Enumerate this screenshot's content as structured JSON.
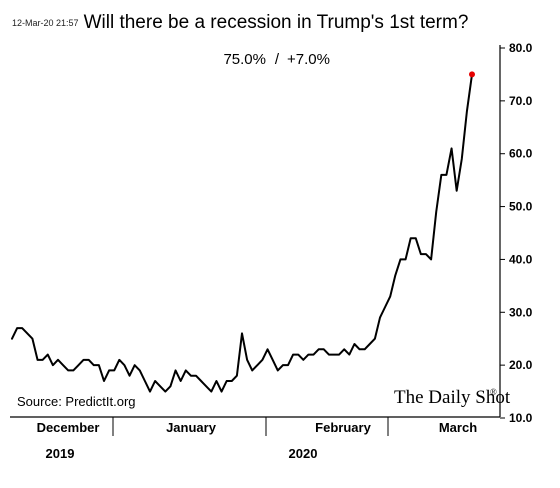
{
  "timestamp": "12-Mar-20 21:57",
  "subtitle_value": "75.0%",
  "subtitle_sep": "/",
  "subtitle_change": "+7.0%",
  "source": "Source: PredictIt.org",
  "brand": "The Daily Shot",
  "brand_mark": "®",
  "chart_data": {
    "type": "line",
    "title": "Will there be a recession in Trump's 1st term?",
    "xlabel": "",
    "ylabel": "",
    "ylim": [
      10,
      80
    ],
    "yticks": [
      "10.0",
      "20.0",
      "30.0",
      "40.0",
      "50.0",
      "60.0",
      "70.0",
      "80.0"
    ],
    "month_labels": [
      "December",
      "January",
      "February",
      "March"
    ],
    "year_labels": [
      "2019",
      "2020"
    ],
    "grid": false,
    "legend": "none",
    "line_color": "#000000",
    "endpoint_color": "#e60000",
    "series": [
      {
        "values": [
          25,
          27,
          27,
          26,
          25,
          21,
          21,
          22,
          20,
          21,
          20,
          19,
          19,
          20,
          21,
          21,
          20,
          20,
          17,
          19,
          19,
          21,
          20,
          18,
          20,
          19,
          17,
          15,
          17,
          16,
          15,
          16,
          19,
          17,
          19,
          18,
          18,
          17,
          16,
          15,
          17,
          15,
          17,
          17,
          18,
          26,
          21,
          19,
          20,
          21,
          23,
          21,
          19,
          20,
          20,
          22,
          22,
          21,
          22,
          22,
          23,
          23,
          22,
          22,
          22,
          23,
          22,
          24,
          23,
          23,
          24,
          25,
          29,
          31,
          33,
          37,
          40,
          40,
          44,
          44,
          41,
          41,
          40,
          49,
          56,
          56,
          61,
          53,
          59,
          68,
          75
        ]
      }
    ]
  }
}
